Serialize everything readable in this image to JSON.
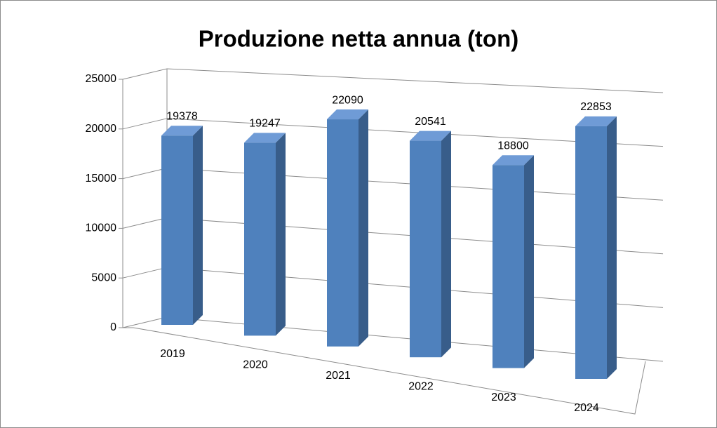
{
  "chart_data": {
    "type": "bar3d",
    "title": "Produzione netta annua (ton)",
    "categories": [
      "2019",
      "2020",
      "2021",
      "2022",
      "2023",
      "2024"
    ],
    "values": [
      19378,
      19247,
      22090,
      20541,
      18800,
      22853
    ],
    "color": "#4f81bd",
    "ylim": [
      0,
      25000
    ],
    "yticks": [
      0,
      5000,
      10000,
      15000,
      20000,
      25000
    ],
    "grid": true
  }
}
